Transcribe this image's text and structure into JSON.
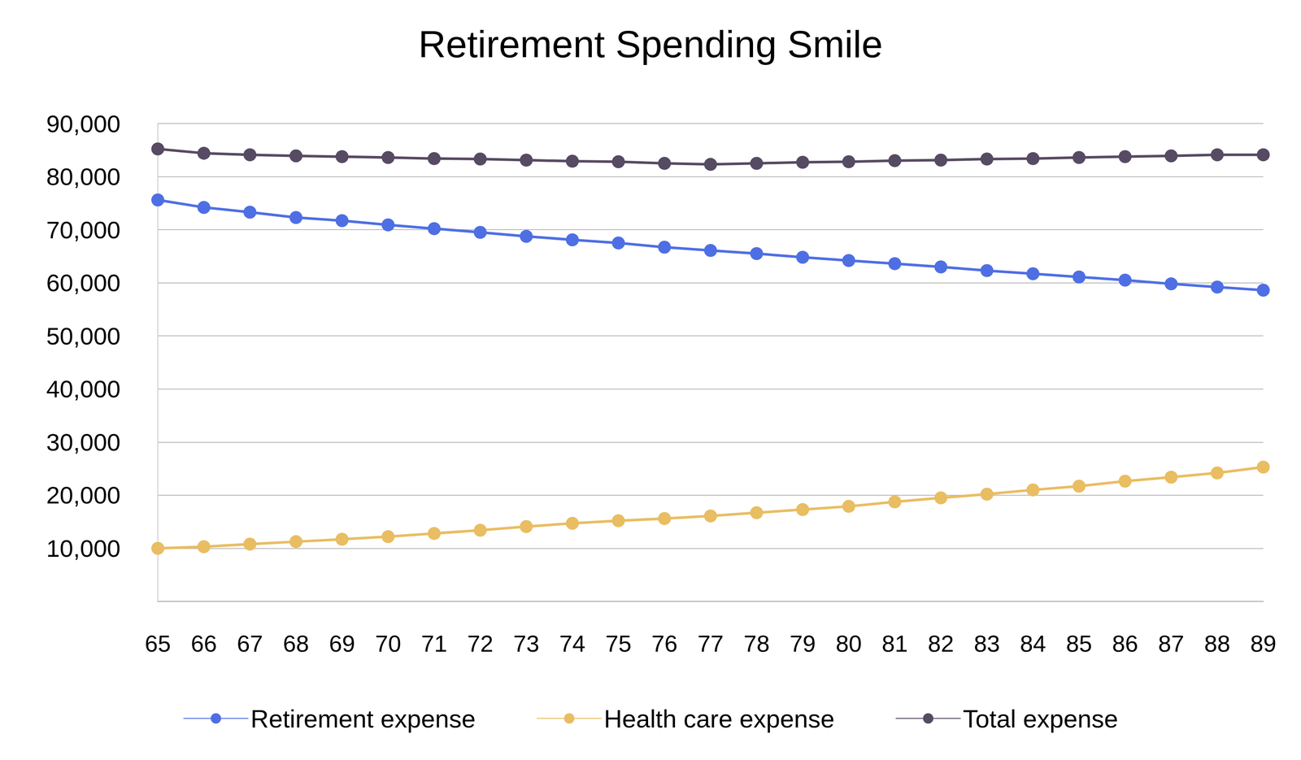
{
  "chart_data": {
    "type": "line",
    "title": "Retirement Spending Smile",
    "categories": [
      "65",
      "66",
      "67",
      "68",
      "69",
      "70",
      "71",
      "72",
      "73",
      "74",
      "75",
      "76",
      "77",
      "78",
      "79",
      "80",
      "81",
      "82",
      "83",
      "84",
      "85",
      "86",
      "87",
      "88",
      "89"
    ],
    "series": [
      {
        "name": "Retirement expense",
        "color": "#4e6fe3",
        "marker": "circle",
        "values": [
          75600,
          74200,
          73300,
          72300,
          71700,
          70900,
          70200,
          69500,
          68750,
          68100,
          67500,
          66700,
          66100,
          65500,
          64800,
          64200,
          63600,
          63000,
          62300,
          61700,
          61100,
          60500,
          59800,
          59200,
          58600
        ]
      },
      {
        "name": "Health care expense",
        "color": "#e9bd62",
        "marker": "circle",
        "values": [
          10000,
          10300,
          10800,
          11250,
          11700,
          12200,
          12800,
          13400,
          14100,
          14700,
          15200,
          15600,
          16100,
          16700,
          17300,
          17900,
          18750,
          19500,
          20200,
          21000,
          21700,
          22650,
          23400,
          24200,
          25300
        ]
      },
      {
        "name": "Total expense",
        "color": "#574a63",
        "marker": "circle",
        "values": [
          85200,
          84400,
          84100,
          83900,
          83750,
          83600,
          83400,
          83300,
          83100,
          82900,
          82800,
          82500,
          82300,
          82500,
          82700,
          82800,
          83000,
          83100,
          83300,
          83400,
          83600,
          83750,
          83900,
          84100,
          84100
        ]
      }
    ],
    "ylim": [
      0,
      90000
    ],
    "yticks": [
      {
        "value": 10000,
        "label": "10,000"
      },
      {
        "value": 20000,
        "label": "20,000"
      },
      {
        "value": 30000,
        "label": "30,000"
      },
      {
        "value": 40000,
        "label": "40,000"
      },
      {
        "value": 50000,
        "label": "50,000"
      },
      {
        "value": 60000,
        "label": "60,000"
      },
      {
        "value": 70000,
        "label": "70,000"
      },
      {
        "value": 80000,
        "label": "80,000"
      },
      {
        "value": 90000,
        "label": "90,000"
      }
    ],
    "grid": true,
    "legend": "bottom"
  }
}
